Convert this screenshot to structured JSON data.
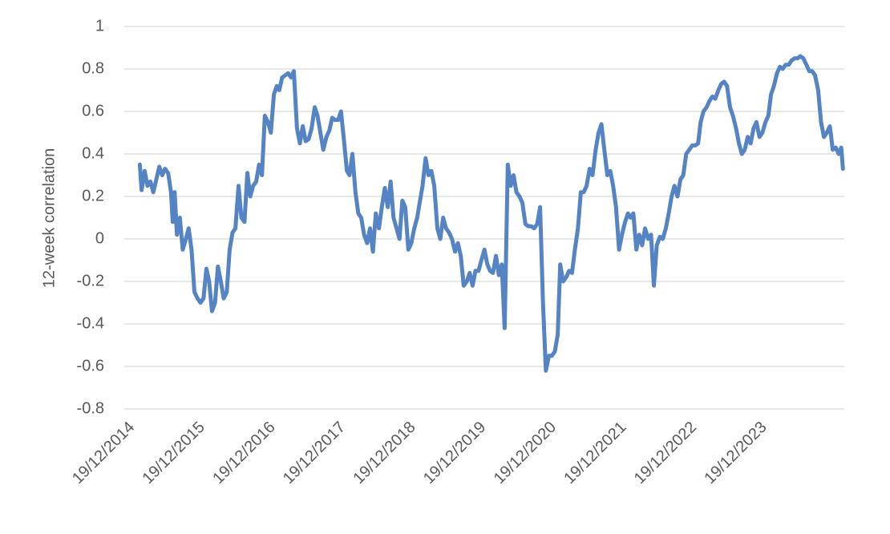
{
  "chart_data": {
    "type": "line",
    "y_label": "12-week correlation",
    "color": "#5584c4",
    "grid": true,
    "ylim": [
      -0.8,
      1
    ],
    "yticks": [
      -0.8,
      -0.6,
      -0.4,
      -0.2,
      0,
      0.2,
      0.4,
      0.6,
      0.8,
      1
    ],
    "xlim": [
      "2014-12-19",
      "2025-03-20"
    ],
    "xticks": [
      {
        "value": "2014-12-19",
        "label": "19/12/2014"
      },
      {
        "value": "2015-12-19",
        "label": "19/12/2015"
      },
      {
        "value": "2016-12-19",
        "label": "19/12/2016"
      },
      {
        "value": "2017-12-19",
        "label": "19/12/2017"
      },
      {
        "value": "2018-12-19",
        "label": "19/12/2018"
      },
      {
        "value": "2019-12-19",
        "label": "19/12/2019"
      },
      {
        "value": "2020-12-19",
        "label": "19/12/2020"
      },
      {
        "value": "2021-12-19",
        "label": "19/12/2021"
      },
      {
        "value": "2022-12-19",
        "label": "19/12/2022"
      },
      {
        "value": "2023-12-19",
        "label": "19/12/2023"
      }
    ],
    "x": [
      "2015-03-10",
      "2015-03-19",
      "2015-04-04",
      "2015-04-19",
      "2015-05-04",
      "2015-05-19",
      "2015-06-19",
      "2015-07-04",
      "2015-07-19",
      "2015-08-04",
      "2015-08-19",
      "2015-08-28",
      "2015-09-07",
      "2015-09-19",
      "2015-10-04",
      "2015-10-19",
      "2015-11-04",
      "2015-11-19",
      "2015-12-04",
      "2015-12-19",
      "2016-01-04",
      "2016-01-19",
      "2016-02-04",
      "2016-02-19",
      "2016-03-04",
      "2016-03-19",
      "2016-04-04",
      "2016-04-19",
      "2016-05-04",
      "2016-05-19",
      "2016-06-04",
      "2016-06-19",
      "2016-07-04",
      "2016-07-19",
      "2016-08-04",
      "2016-08-19",
      "2016-09-04",
      "2016-09-19",
      "2016-10-04",
      "2016-10-19",
      "2016-11-04",
      "2016-11-19",
      "2016-12-04",
      "2016-12-19",
      "2017-01-04",
      "2017-01-19",
      "2017-02-04",
      "2017-02-19",
      "2017-03-04",
      "2017-03-19",
      "2017-04-04",
      "2017-04-19",
      "2017-05-04",
      "2017-05-19",
      "2017-06-04",
      "2017-06-19",
      "2017-07-04",
      "2017-07-19",
      "2017-08-04",
      "2017-08-19",
      "2017-09-04",
      "2017-09-19",
      "2017-10-04",
      "2017-10-19",
      "2017-11-04",
      "2017-11-19",
      "2017-12-04",
      "2017-12-19",
      "2018-01-04",
      "2018-01-19",
      "2018-02-04",
      "2018-02-19",
      "2018-03-04",
      "2018-03-19",
      "2018-04-04",
      "2018-04-19",
      "2018-05-04",
      "2018-05-19",
      "2018-06-04",
      "2018-06-19",
      "2018-07-04",
      "2018-07-19",
      "2018-08-04",
      "2018-08-19",
      "2018-09-04",
      "2018-09-19",
      "2018-10-04",
      "2018-10-19",
      "2018-11-04",
      "2018-11-19",
      "2018-12-04",
      "2018-12-19",
      "2019-01-04",
      "2019-01-19",
      "2019-02-04",
      "2019-02-19",
      "2019-03-04",
      "2019-03-19",
      "2019-04-04",
      "2019-04-19",
      "2019-05-04",
      "2019-05-19",
      "2019-06-04",
      "2019-06-19",
      "2019-07-04",
      "2019-07-19",
      "2019-08-04",
      "2019-08-19",
      "2019-09-04",
      "2019-09-19",
      "2019-10-04",
      "2019-10-19",
      "2019-11-04",
      "2019-11-19",
      "2019-12-04",
      "2019-12-19",
      "2020-01-04",
      "2020-01-19",
      "2020-02-04",
      "2020-02-19",
      "2020-03-04",
      "2020-03-19",
      "2020-04-04",
      "2020-04-19",
      "2020-05-04",
      "2020-05-19",
      "2020-06-04",
      "2020-06-19",
      "2020-07-04",
      "2020-07-19",
      "2020-08-04",
      "2020-08-19",
      "2020-09-04",
      "2020-09-19",
      "2020-10-04",
      "2020-10-19",
      "2020-11-04",
      "2020-11-19",
      "2020-12-04",
      "2020-12-19",
      "2021-01-04",
      "2021-01-19",
      "2021-02-04",
      "2021-02-19",
      "2021-03-04",
      "2021-03-19",
      "2021-04-04",
      "2021-04-19",
      "2021-05-04",
      "2021-05-19",
      "2021-06-04",
      "2021-06-19",
      "2021-07-04",
      "2021-07-19",
      "2021-08-04",
      "2021-08-19",
      "2021-09-04",
      "2021-09-19",
      "2021-10-04",
      "2021-10-19",
      "2021-11-04",
      "2021-11-19",
      "2021-12-04",
      "2021-12-19",
      "2022-01-04",
      "2022-01-19",
      "2022-02-04",
      "2022-02-19",
      "2022-03-04",
      "2022-03-19",
      "2022-04-04",
      "2022-04-19",
      "2022-05-04",
      "2022-05-19",
      "2022-06-04",
      "2022-06-19",
      "2022-07-04",
      "2022-07-19",
      "2022-08-04",
      "2022-08-19",
      "2022-09-04",
      "2022-09-19",
      "2022-10-04",
      "2022-10-19",
      "2022-11-04",
      "2022-11-19",
      "2022-12-04",
      "2022-12-19",
      "2023-01-04",
      "2023-01-19",
      "2023-02-04",
      "2023-02-19",
      "2023-03-04",
      "2023-03-19",
      "2023-04-04",
      "2023-04-19",
      "2023-05-04",
      "2023-05-19",
      "2023-06-04",
      "2023-06-19",
      "2023-07-04",
      "2023-07-19",
      "2023-08-04",
      "2023-08-19",
      "2023-09-04",
      "2023-09-19",
      "2023-10-04",
      "2023-10-19",
      "2023-11-04",
      "2023-11-19",
      "2023-12-04",
      "2023-12-19",
      "2024-01-04",
      "2024-01-19",
      "2024-02-04",
      "2024-02-19",
      "2024-03-04",
      "2024-03-19",
      "2024-04-04",
      "2024-04-19",
      "2024-05-04",
      "2024-05-19",
      "2024-06-04",
      "2024-06-19",
      "2024-07-04",
      "2024-07-19",
      "2024-08-04",
      "2024-08-19",
      "2024-09-04",
      "2024-09-19",
      "2024-10-04",
      "2024-10-19",
      "2024-11-04",
      "2024-11-19",
      "2024-12-04",
      "2024-12-19",
      "2025-01-04",
      "2025-01-19",
      "2025-02-04",
      "2025-02-19",
      "2025-03-04",
      "2025-03-13"
    ],
    "values": [
      0.35,
      0.23,
      0.32,
      0.25,
      0.27,
      0.22,
      0.34,
      0.3,
      0.33,
      0.31,
      0.22,
      0.08,
      0.22,
      0.02,
      0.1,
      -0.05,
      0.0,
      0.05,
      -0.05,
      -0.25,
      -0.28,
      -0.3,
      -0.28,
      -0.14,
      -0.2,
      -0.34,
      -0.3,
      -0.13,
      -0.2,
      -0.28,
      -0.25,
      -0.05,
      0.03,
      0.05,
      0.25,
      0.1,
      0.08,
      0.31,
      0.2,
      0.25,
      0.27,
      0.35,
      0.3,
      0.58,
      0.55,
      0.5,
      0.68,
      0.72,
      0.7,
      0.76,
      0.77,
      0.78,
      0.76,
      0.79,
      0.52,
      0.45,
      0.53,
      0.46,
      0.47,
      0.52,
      0.62,
      0.58,
      0.5,
      0.42,
      0.48,
      0.51,
      0.57,
      0.56,
      0.56,
      0.6,
      0.46,
      0.32,
      0.3,
      0.4,
      0.22,
      0.12,
      0.1,
      0.02,
      -0.02,
      0.05,
      -0.06,
      0.12,
      0.05,
      0.15,
      0.24,
      0.15,
      0.27,
      0.1,
      0.05,
      0.0,
      0.18,
      0.15,
      -0.05,
      -0.02,
      0.05,
      0.1,
      0.17,
      0.25,
      0.38,
      0.3,
      0.32,
      0.25,
      0.05,
      0.0,
      0.1,
      0.05,
      0.03,
      0.0,
      -0.06,
      -0.02,
      -0.08,
      -0.22,
      -0.2,
      -0.16,
      -0.22,
      -0.15,
      -0.15,
      -0.1,
      -0.05,
      -0.12,
      -0.15,
      -0.16,
      -0.08,
      -0.17,
      -0.12,
      -0.42,
      0.35,
      0.25,
      0.3,
      0.22,
      0.2,
      0.17,
      0.07,
      0.06,
      0.06,
      0.05,
      0.07,
      0.15,
      -0.3,
      -0.62,
      -0.55,
      -0.55,
      -0.53,
      -0.45,
      -0.12,
      -0.2,
      -0.18,
      -0.15,
      -0.16,
      -0.05,
      0.05,
      0.22,
      0.22,
      0.25,
      0.33,
      0.3,
      0.42,
      0.5,
      0.54,
      0.42,
      0.3,
      0.32,
      0.25,
      0.15,
      -0.05,
      0.02,
      0.08,
      0.12,
      0.1,
      0.12,
      -0.05,
      0.02,
      -0.03,
      0.05,
      0.0,
      0.02,
      -0.22,
      -0.03,
      0.01,
      0.0,
      0.05,
      0.12,
      0.2,
      0.25,
      0.2,
      0.28,
      0.3,
      0.4,
      0.42,
      0.44,
      0.44,
      0.45,
      0.55,
      0.6,
      0.62,
      0.65,
      0.67,
      0.66,
      0.7,
      0.73,
      0.74,
      0.72,
      0.62,
      0.58,
      0.52,
      0.45,
      0.4,
      0.42,
      0.48,
      0.45,
      0.52,
      0.55,
      0.48,
      0.5,
      0.55,
      0.58,
      0.68,
      0.72,
      0.78,
      0.81,
      0.8,
      0.82,
      0.82,
      0.84,
      0.85,
      0.85,
      0.86,
      0.85,
      0.82,
      0.79,
      0.79,
      0.77,
      0.7,
      0.55,
      0.48,
      0.5,
      0.53,
      0.42,
      0.43,
      0.4,
      0.43,
      0.33
    ]
  }
}
